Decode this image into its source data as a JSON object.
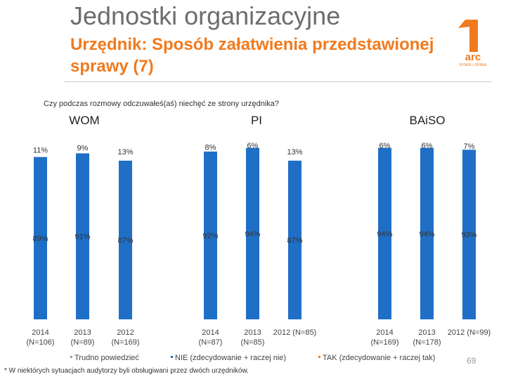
{
  "header": {
    "title": "Jednostki organizacyjne",
    "subtitle": "Urzędnik: Sposób załatwienia przedstawionej sprawy (7)"
  },
  "logo": {
    "text": "arc",
    "tagline": "RYNEK I OPINIA"
  },
  "footnote": "* W niektórych sytuacjach audytorzy byli obsługiwani przez dwóch urzędników.",
  "page_number": "69",
  "colors": {
    "accent_orange": "#f07a1e",
    "bar_blue": "#1f6fc6",
    "bar_orange": "#f07a1e",
    "title_gray": "#6d6d6d"
  },
  "chart_data": {
    "type": "bar",
    "stacked": true,
    "percent": true,
    "question": "Czy podczas rozmowy odczuwałeś(aś) niechęć ze strony urzędnika?",
    "ylim": [
      0,
      100
    ],
    "groups": [
      {
        "name": "WOM",
        "categories": [
          "2014\n(N=106)",
          "2013\n(N=89)",
          "2012\n(N=169)"
        ]
      },
      {
        "name": "PI",
        "categories": [
          "2014\n(N=87)",
          "2013\n(N=85)",
          "2012 (N=85)"
        ]
      },
      {
        "name": "BAiSO",
        "categories": [
          "2014\n(N=169)",
          "2013\n(N=178)",
          "2012 (N=99)"
        ]
      }
    ],
    "series": [
      {
        "name": "NIE (zdecydowanie + raczej nie)",
        "color": "#1f6fc6",
        "values": [
          89,
          91,
          87,
          92,
          94,
          87,
          94,
          94,
          93
        ],
        "labels": [
          "89%",
          "91%",
          "87%",
          "92%",
          "94%",
          "87%",
          "94%",
          "94%",
          "93%"
        ]
      },
      {
        "name": "TAK (zdecydowanie + raczej tak)",
        "color": "#f07a1e",
        "values": [
          0,
          0,
          0,
          0,
          0,
          0,
          0,
          0,
          0
        ],
        "labels": [
          "",
          "",
          "",
          "",
          "",
          "",
          "",
          "",
          ""
        ]
      },
      {
        "name": "Trudno powiedzieć",
        "color": "#ffffff",
        "values": [
          11,
          9,
          13,
          8,
          6,
          13,
          6,
          6,
          7
        ],
        "labels": [
          "11%",
          "9%",
          "13%",
          "8%",
          "6%",
          "13%",
          "6%",
          "6%",
          "7%"
        ]
      }
    ],
    "legend": [
      "Trudno powiedzieć",
      "NIE (zdecydowanie + raczej nie)",
      "TAK (zdecydowanie + raczej tak)"
    ],
    "legend_placement": "bottom"
  }
}
